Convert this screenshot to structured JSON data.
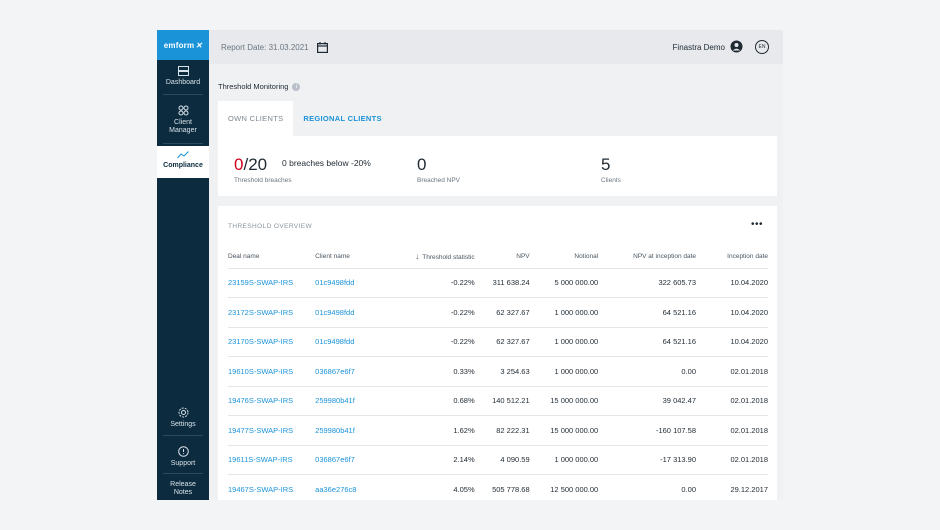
{
  "sidebar": {
    "logo": "emform",
    "items": [
      {
        "label": "Dashboard",
        "icon": "dashboard-icon"
      },
      {
        "label": "Client Manager",
        "icon": "client-manager-icon"
      },
      {
        "label": "Compliance",
        "icon": "compliance-icon"
      },
      {
        "label": "Settings",
        "icon": "gear-icon"
      },
      {
        "label": "Support",
        "icon": "help-icon"
      },
      {
        "label": "Release Notes",
        "icon": ""
      }
    ]
  },
  "topbar": {
    "report_date": "Report Date: 31.03.2021",
    "user_name": "Finastra Demo",
    "language": "EN"
  },
  "page": {
    "title": "Threshold Monitoring",
    "tabs": [
      "OWN CLIENTS",
      "REGIONAL CLIENTS"
    ]
  },
  "summary": {
    "breaches_value": "0",
    "breaches_total": "/20",
    "breaches_caption": "Threshold breaches",
    "breaches_below": "0 breaches below -20%",
    "npv_value": "0",
    "npv_caption": "Breached NPV",
    "clients_value": "5",
    "clients_caption": "Clients"
  },
  "overview": {
    "title": "THRESHOLD OVERVIEW",
    "more": "•••",
    "columns": [
      "Deal name",
      "Client name",
      "Threshold statistic",
      "NPV",
      "Notional",
      "NPV at inception date",
      "Inception date"
    ],
    "rows": [
      [
        "23159S-SWAP-IRS",
        "01c9498fdd",
        "-0.22%",
        "311 638.24",
        "5 000 000.00",
        "322 605.73",
        "10.04.2020"
      ],
      [
        "23172S-SWAP-IRS",
        "01c9498fdd",
        "-0.22%",
        "62 327.67",
        "1 000 000.00",
        "64 521.16",
        "10.04.2020"
      ],
      [
        "23170S-SWAP-IRS",
        "01c9498fdd",
        "-0.22%",
        "62 327.67",
        "1 000 000.00",
        "64 521.16",
        "10.04.2020"
      ],
      [
        "19610S-SWAP-IRS",
        "036867e6f7",
        "0.33%",
        "3 254.63",
        "1 000 000.00",
        "0.00",
        "02.01.2018"
      ],
      [
        "19476S-SWAP-IRS",
        "259980b41f",
        "0.68%",
        "140 512.21",
        "15 000 000.00",
        "39 042.47",
        "02.01.2018"
      ],
      [
        "19477S-SWAP-IRS",
        "259980b41f",
        "1.62%",
        "82 222.31",
        "15 000 000.00",
        "-160 107.58",
        "02.01.2018"
      ],
      [
        "19611S-SWAP-IRS",
        "036867e6f7",
        "2.14%",
        "4 090.59",
        "1 000 000.00",
        "-17 313.90",
        "02.01.2018"
      ],
      [
        "19467S-SWAP-IRS",
        "aa36e276c8",
        "4.05%",
        "505 778.68",
        "12 500 000.00",
        "0.00",
        "29.12.2017"
      ]
    ]
  }
}
